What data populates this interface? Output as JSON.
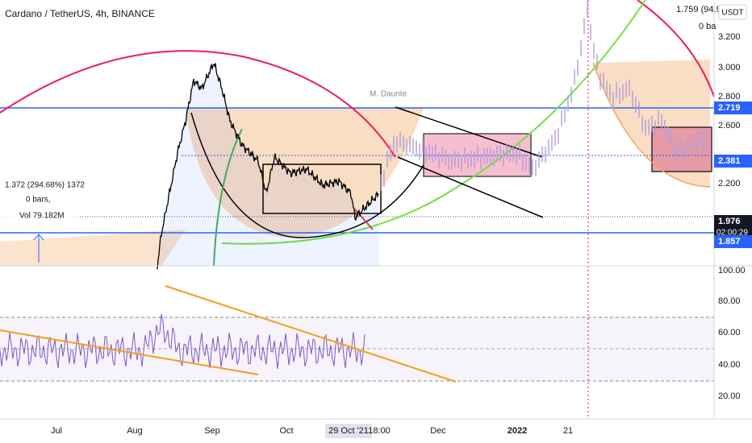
{
  "header": {
    "symbol": "Cardano / TetherUS, 4h, BINANCE"
  },
  "top_right": {
    "value": "1.759 (94.9",
    "bars": "0 ba",
    "currency": "USDT"
  },
  "left_info": {
    "change": "1.372 (294.68%) 1372",
    "bars": "0 bars,",
    "vol": "Vol 79.182M"
  },
  "annotation": "M. Daunte",
  "price_axis": [
    "3.200",
    "3.000",
    "2.800",
    "2.600",
    "2.200"
  ],
  "price_tags": [
    {
      "label": "2.719"
    },
    {
      "label": "2.381"
    },
    {
      "label": "1.976",
      "sub": "02:00:29"
    },
    {
      "label": "1.857"
    }
  ],
  "rsi_axis": [
    "100.00",
    "80.00",
    "60.00",
    "40.00",
    "20.00"
  ],
  "time_axis": [
    "Jul",
    "Aug",
    "Sep",
    "Oct",
    "29 Oct '21",
    "18:00",
    "Dec",
    "2022",
    "21"
  ]
}
